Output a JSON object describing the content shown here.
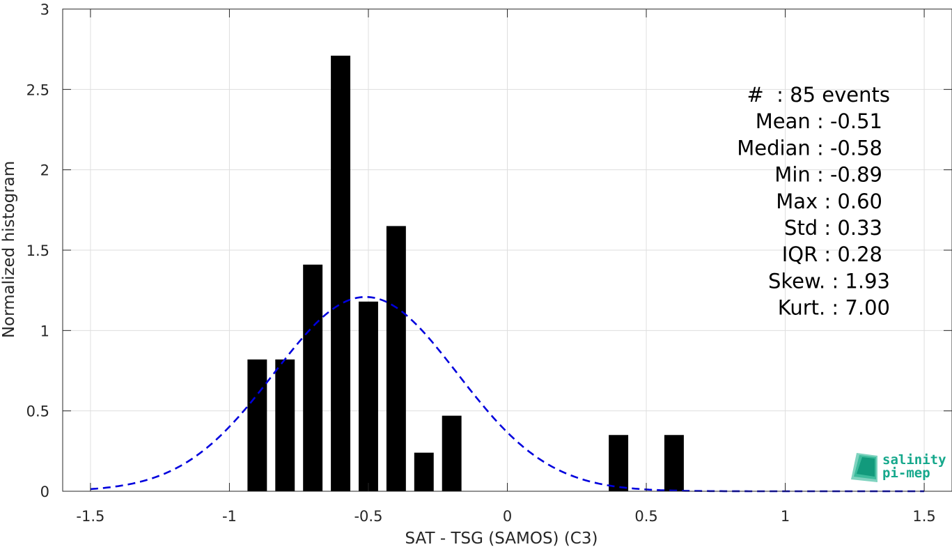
{
  "chart_data": {
    "type": "bar",
    "xlabel": "SAT - TSG (SAMOS) (C3)",
    "ylabel": "Normalized histogram",
    "xlim": [
      -1.6,
      1.6
    ],
    "ylim": [
      0,
      3
    ],
    "xticks": [
      -1.5,
      -1,
      -0.5,
      0,
      0.5,
      1,
      1.5
    ],
    "xtick_labels": [
      "-1.5",
      "-1",
      "-0.5",
      "0",
      "0.5",
      "1",
      "1.5"
    ],
    "yticks": [
      0,
      0.5,
      1,
      1.5,
      2,
      2.5,
      3
    ],
    "ytick_labels": [
      "0",
      "0.5",
      "1",
      "1.5",
      "2",
      "2.5",
      "3"
    ],
    "grid": true,
    "bar_color": "#000000",
    "bars": [
      {
        "x": -0.9,
        "y": 0.82
      },
      {
        "x": -0.8,
        "y": 0.82
      },
      {
        "x": -0.7,
        "y": 1.41
      },
      {
        "x": -0.6,
        "y": 2.71
      },
      {
        "x": -0.5,
        "y": 1.18
      },
      {
        "x": -0.4,
        "y": 1.65
      },
      {
        "x": -0.3,
        "y": 0.24
      },
      {
        "x": -0.2,
        "y": 0.47
      },
      {
        "x": 0.4,
        "y": 0.35
      },
      {
        "x": 0.6,
        "y": 0.35
      }
    ],
    "bar_width": 0.07,
    "fit_curve": {
      "style": "dashed",
      "color": "#0000dd",
      "mean": -0.51,
      "std": 0.33,
      "x_range": [
        -1.5,
        1.5
      ]
    },
    "annotations": [
      "#  : 85 events",
      "Mean : -0.51",
      "Median : -0.58",
      "Min : -0.89",
      "Max : 0.60",
      "Std : 0.33",
      "IQR : 0.28",
      "Skew. : 1.93",
      "Kurt. : 7.00"
    ]
  },
  "logo": {
    "line1": "salinity",
    "line2": "pi-mep",
    "color": "#16a88c"
  }
}
